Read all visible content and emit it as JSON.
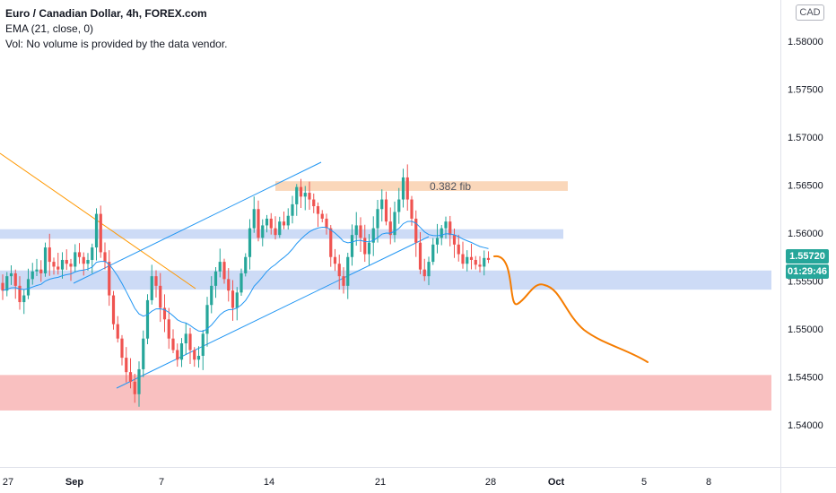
{
  "legend": {
    "symbol": "Euro / Canadian Dollar, 4h, FOREX.com",
    "ema": "EMA (21, close, 0)",
    "volume": "Vol: No volume is provided by the data vendor."
  },
  "currency": "CAD",
  "last_price": "1.55720",
  "countdown": "01:29:46",
  "annotation": "0.382 fib",
  "colors": {
    "up": "#26a69a",
    "down": "#ef5350",
    "ema": "#2196f3",
    "zone_blue": "#c8d7f5",
    "zone_orange": "#f9d3b3",
    "zone_red": "#f8b9b9",
    "projection": "#f57c00",
    "trendline": "#ff9800",
    "channel": "#2196f3"
  },
  "chart_data": {
    "type": "candlestick",
    "timeframe": "4h",
    "y_axis_ticks": [
      "1.58000",
      "1.57500",
      "1.57000",
      "1.56500",
      "1.56000",
      "1.55500",
      "1.55000",
      "1.54500",
      "1.54000"
    ],
    "ylim": [
      1.5335,
      1.5845
    ],
    "x_axis_ticks": [
      "27",
      "Sep",
      "7",
      "14",
      "21",
      "28",
      "Oct",
      "5",
      "8"
    ],
    "close_series": [
      1.554,
      1.5555,
      1.5558,
      1.5545,
      1.5528,
      1.5535,
      1.5552,
      1.556,
      1.5562,
      1.5558,
      1.5585,
      1.557,
      1.5565,
      1.5562,
      1.5572,
      1.5568,
      1.5565,
      1.558,
      1.5575,
      1.5568,
      1.5572,
      1.5585,
      1.562,
      1.558,
      1.557,
      1.5535,
      1.5505,
      1.549,
      1.547,
      1.5455,
      1.5445,
      1.5432,
      1.5458,
      1.549,
      1.553,
      1.5555,
      1.5545,
      1.5522,
      1.551,
      1.549,
      1.5478,
      1.5468,
      1.5485,
      1.5495,
      1.5478,
      1.5468,
      1.5472,
      1.5495,
      1.5525,
      1.5545,
      1.556,
      1.557,
      1.5552,
      1.554,
      1.5522,
      1.5538,
      1.5558,
      1.5575,
      1.5605,
      1.5625,
      1.5595,
      1.5608,
      1.5615,
      1.5605,
      1.5598,
      1.5612,
      1.5608,
      1.5618,
      1.563,
      1.5648,
      1.5638,
      1.5642,
      1.5635,
      1.5628,
      1.562,
      1.5615,
      1.5605,
      1.5575,
      1.5568,
      1.5555,
      1.5545,
      1.5575,
      1.5598,
      1.5608,
      1.5595,
      1.5578,
      1.559,
      1.5605,
      1.5625,
      1.5635,
      1.5612,
      1.5598,
      1.5622,
      1.5635,
      1.5658,
      1.5635,
      1.5615,
      1.559,
      1.5562,
      1.5555,
      1.557,
      1.5588,
      1.5595,
      1.5605,
      1.5612,
      1.5598,
      1.5588,
      1.5578,
      1.5568,
      1.5575,
      1.5572,
      1.5567,
      1.5565,
      1.5574,
      1.5572
    ],
    "ema_period": 21,
    "annotations": [
      {
        "type": "horizontal_zone",
        "from": 1.5594,
        "to": 1.5604,
        "color": "blue"
      },
      {
        "type": "horizontal_zone",
        "from": 1.5541,
        "to": 1.5561,
        "color": "blue"
      },
      {
        "type": "horizontal_zone",
        "from": 1.5644,
        "to": 1.5654,
        "color": "orange",
        "label": "0.382 fib"
      },
      {
        "type": "horizontal_zone",
        "from": 1.5415,
        "to": 1.5452,
        "color": "red"
      },
      {
        "type": "rising_channel"
      },
      {
        "type": "descending_trendline"
      },
      {
        "type": "projection_curve",
        "points": [
          [
            1.5572,
            0
          ],
          [
            1.5525,
            4
          ],
          [
            1.5546,
            9
          ],
          [
            1.5465,
            23
          ]
        ]
      }
    ]
  }
}
